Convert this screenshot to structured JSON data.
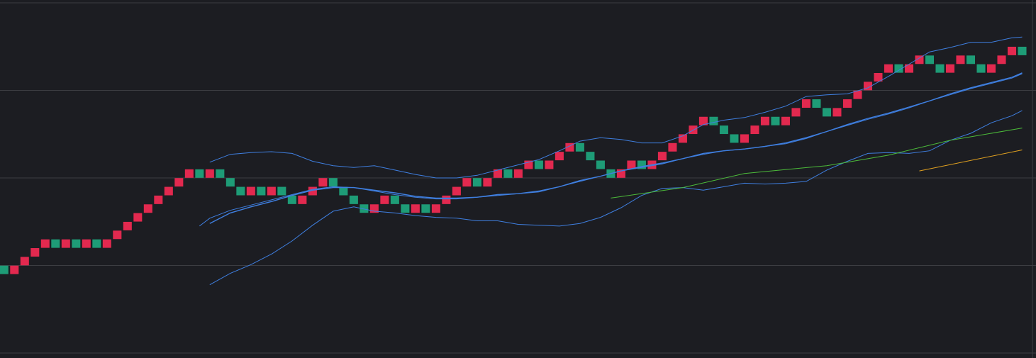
{
  "chart_data": {
    "type": "renko",
    "ylim": [
      0,
      40
    ],
    "yticks": [
      0,
      10,
      20,
      30,
      40
    ],
    "xlim": [
      -0.4,
      100
    ],
    "grid": true,
    "brick_size": 1,
    "palette": {
      "up": "#e2294f",
      "down": "#1e9c77"
    },
    "bricks": {
      "values": [
        9.5,
        9.5,
        10.5,
        11.5,
        12.5,
        12.5,
        12.5,
        12.5,
        12.5,
        12.5,
        12.5,
        13.5,
        14.5,
        15.5,
        16.5,
        17.5,
        18.5,
        19.5,
        20.5,
        20.5,
        20.5,
        20.5,
        19.5,
        18.5,
        18.5,
        18.5,
        18.5,
        18.5,
        17.5,
        17.5,
        18.5,
        19.5,
        19.5,
        18.5,
        17.5,
        16.5,
        16.5,
        17.5,
        17.5,
        16.5,
        16.5,
        16.5,
        16.5,
        17.5,
        18.5,
        19.5,
        19.5,
        19.5,
        20.5,
        20.5,
        20.5,
        21.5,
        21.5,
        21.5,
        22.5,
        23.5,
        23.5,
        22.5,
        21.5,
        20.5,
        20.5,
        21.5,
        21.5,
        21.5,
        22.5,
        23.5,
        24.5,
        25.5,
        26.5,
        26.5,
        25.5,
        24.5,
        24.5,
        25.5,
        26.5,
        26.5,
        26.5,
        27.5,
        28.5,
        28.5,
        27.5,
        27.5,
        28.5,
        29.5,
        30.5,
        31.5,
        32.5,
        32.5,
        32.5,
        33.5,
        33.5,
        32.5,
        32.5,
        33.5,
        33.5,
        32.5,
        32.5,
        33.5,
        34.5,
        34.5
      ],
      "colors": [
        "down",
        "up",
        "up",
        "up",
        "up",
        "down",
        "up",
        "down",
        "up",
        "down",
        "up",
        "up",
        "up",
        "up",
        "up",
        "up",
        "up",
        "up",
        "up",
        "down",
        "up",
        "down",
        "down",
        "down",
        "up",
        "down",
        "up",
        "down",
        "down",
        "up",
        "up",
        "up",
        "down",
        "down",
        "down",
        "down",
        "up",
        "up",
        "down",
        "down",
        "up",
        "down",
        "up",
        "up",
        "up",
        "up",
        "down",
        "up",
        "up",
        "down",
        "up",
        "up",
        "down",
        "up",
        "up",
        "up",
        "down",
        "down",
        "down",
        "down",
        "up",
        "up",
        "down",
        "up",
        "up",
        "up",
        "up",
        "up",
        "up",
        "down",
        "down",
        "down",
        "up",
        "up",
        "up",
        "down",
        "up",
        "up",
        "up",
        "down",
        "down",
        "up",
        "up",
        "up",
        "up",
        "up",
        "up",
        "down",
        "up",
        "up",
        "down",
        "down",
        "up",
        "up",
        "down",
        "down",
        "up",
        "up",
        "up",
        "down"
      ]
    },
    "lines": [
      {
        "color": "#3f7fe0",
        "width": 1,
        "x": [
          20,
          22,
          24,
          26,
          28,
          30,
          32,
          34,
          36,
          38,
          40,
          42,
          44,
          46,
          48,
          50,
          52,
          54,
          56,
          58,
          60,
          62,
          64,
          66,
          68,
          70,
          72,
          74,
          76,
          78,
          80,
          82,
          84,
          86,
          88,
          90,
          92,
          94,
          96,
          98,
          99
        ],
        "values": [
          21.8,
          22.7,
          22.9,
          23.0,
          22.8,
          21.9,
          21.4,
          21.2,
          21.4,
          20.9,
          20.4,
          20.0,
          20.0,
          20.3,
          20.9,
          21.5,
          22.1,
          23.1,
          24.2,
          24.6,
          24.4,
          24.0,
          24.0,
          24.8,
          26.1,
          26.6,
          26.9,
          27.5,
          28.2,
          29.3,
          29.5,
          29.6,
          30.3,
          31.6,
          33.0,
          34.4,
          34.9,
          35.5,
          35.5,
          36.0,
          36.1
        ]
      },
      {
        "color": "#3f7fe0",
        "width": 1.4,
        "x": [
          20,
          22,
          24,
          26,
          28,
          30,
          32,
          34,
          36,
          38,
          40,
          42,
          44,
          46,
          48,
          50,
          52,
          54,
          56,
          58,
          60,
          62,
          64,
          66,
          68,
          70,
          72,
          74,
          76,
          78,
          80,
          82,
          84,
          86,
          88,
          90,
          92,
          94,
          96,
          98,
          99
        ],
        "values": [
          14.8,
          16.0,
          16.7,
          17.3,
          18.0,
          18.6,
          18.9,
          18.9,
          18.6,
          18.3,
          17.9,
          17.7,
          17.7,
          17.8,
          18.1,
          18.2,
          18.5,
          19.0,
          19.7,
          20.2,
          20.8,
          21.3,
          21.7,
          22.2,
          22.8,
          23.1,
          23.3,
          23.6,
          24.0,
          24.6,
          25.3,
          26.1,
          26.8,
          27.4,
          28.1,
          28.8,
          29.6,
          30.3,
          30.9,
          31.5,
          32.0
        ]
      },
      {
        "color": "#3f7fe0",
        "width": 1,
        "x": [
          19,
          20,
          22,
          24,
          26,
          28,
          30,
          32,
          34,
          36,
          38,
          40,
          42,
          44,
          46,
          48,
          50,
          52,
          54,
          56,
          58,
          60,
          62,
          64,
          66,
          68,
          70,
          72,
          74,
          76,
          78,
          80,
          82,
          84,
          86,
          88,
          90,
          92,
          94,
          96,
          98,
          99
        ],
        "values": [
          14.5,
          15.4,
          16.3,
          16.9,
          17.5,
          18.1,
          18.7,
          19.0,
          18.9,
          18.5,
          18.1,
          17.8,
          17.6,
          17.6,
          17.8,
          18.0,
          18.2,
          18.4,
          19.0,
          19.6,
          20.2,
          20.8,
          21.2,
          21.6,
          22.2,
          22.7,
          23.1,
          23.3,
          23.6,
          23.9,
          24.5,
          25.3,
          26.0,
          26.7,
          27.3,
          28.0,
          28.8,
          29.5,
          30.2,
          30.8,
          31.4,
          31.9
        ]
      },
      {
        "color": "#3f7fe0",
        "width": 1,
        "x": [
          20,
          22,
          24,
          26,
          28,
          30,
          32,
          34,
          36,
          38,
          40,
          42,
          44,
          46,
          48,
          50,
          52,
          54,
          56,
          58,
          60,
          62,
          64,
          66,
          68,
          70,
          72,
          74,
          76,
          78,
          80,
          82,
          84,
          86,
          88,
          90,
          92,
          94,
          96,
          98,
          99
        ],
        "values": [
          7.8,
          9.1,
          10.1,
          11.3,
          12.8,
          14.6,
          16.2,
          16.7,
          16.2,
          16.0,
          15.7,
          15.5,
          15.4,
          15.1,
          15.1,
          14.7,
          14.6,
          14.5,
          14.8,
          15.5,
          16.6,
          18.0,
          18.8,
          18.9,
          18.6,
          19.0,
          19.4,
          19.3,
          19.4,
          19.6,
          20.9,
          21.9,
          22.8,
          22.9,
          22.8,
          23.1,
          24.3,
          25.1,
          26.3,
          27.1,
          27.7
        ]
      },
      {
        "color": "#4cbb3a",
        "width": 1,
        "x": [
          59,
          66,
          72,
          80,
          86,
          92,
          99
        ],
        "values": [
          17.7,
          18.9,
          20.5,
          21.4,
          22.6,
          24.3,
          25.7
        ]
      },
      {
        "color": "#e0a020",
        "width": 1,
        "x": [
          89,
          99
        ],
        "values": [
          20.8,
          23.2
        ]
      }
    ]
  }
}
